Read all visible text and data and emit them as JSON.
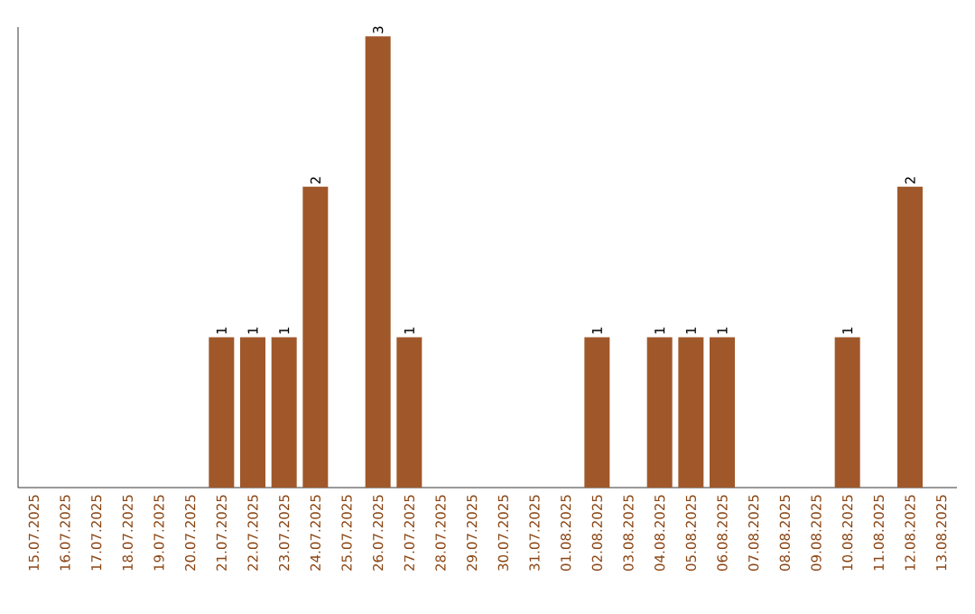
{
  "chart_data": {
    "type": "bar",
    "categories": [
      "15.07.2025",
      "16.07.2025",
      "17.07.2025",
      "18.07.2025",
      "19.07.2025",
      "20.07.2025",
      "21.07.2025",
      "22.07.2025",
      "23.07.2025",
      "24.07.2025",
      "25.07.2025",
      "26.07.2025",
      "27.07.2025",
      "28.07.2025",
      "29.07.2025",
      "30.07.2025",
      "31.07.2025",
      "01.08.2025",
      "02.08.2025",
      "03.08.2025",
      "04.08.2025",
      "05.08.2025",
      "06.08.2025",
      "07.08.2025",
      "08.08.2025",
      "09.08.2025",
      "10.08.2025",
      "11.08.2025",
      "12.08.2025",
      "13.08.2025"
    ],
    "values": [
      0,
      0,
      0,
      0,
      0,
      0,
      1,
      1,
      1,
      2,
      0,
      3,
      1,
      0,
      0,
      0,
      0,
      0,
      1,
      0,
      1,
      1,
      1,
      0,
      0,
      0,
      1,
      0,
      2,
      0
    ],
    "value_labels": [
      null,
      null,
      null,
      null,
      null,
      null,
      "1",
      "1",
      "1",
      "2",
      null,
      "3",
      "1",
      null,
      null,
      null,
      null,
      null,
      "1",
      null,
      "1",
      "1",
      "1",
      null,
      null,
      null,
      "1",
      null,
      "2",
      null
    ],
    "color": "#a0582a"
  }
}
